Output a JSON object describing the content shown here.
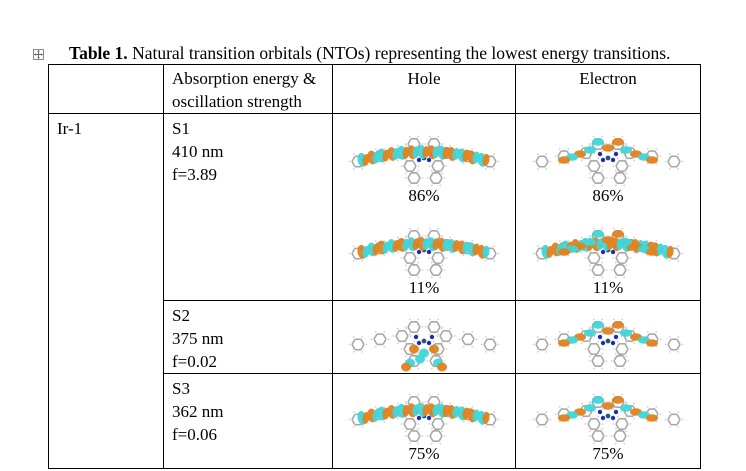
{
  "caption": {
    "label": "Table 1.",
    "text": " Natural transition orbitals (NTOs) representing the lowest energy transitions."
  },
  "table": {
    "headers": [
      "",
      "Absorption energy &",
      "oscillation strength",
      "Hole",
      "Electron"
    ],
    "molecule": "Ir-1",
    "rows": [
      {
        "state": "S1",
        "wavelength": "410 nm",
        "osc": "f=3.89",
        "hole": [
          {
            "orbital": "delocalized-backbone-orbital",
            "weight": "86%"
          },
          {
            "orbital": "delocalized-backbone-orbital",
            "weight": "11%"
          }
        ],
        "electron": [
          {
            "orbital": "central-core-orbital",
            "weight": "86%"
          },
          {
            "orbital": "delocalized-backbone-orbital",
            "weight": "11%"
          }
        ]
      },
      {
        "state": "S2",
        "wavelength": "375 nm",
        "osc": "f=0.02",
        "hole": [
          {
            "orbital": "ancillary-ligand-orbital",
            "weight": ""
          }
        ],
        "electron": [
          {
            "orbital": "central-core-orbital",
            "weight": ""
          }
        ]
      },
      {
        "state": "S3",
        "wavelength": "362 nm",
        "osc": "f=0.06",
        "hole": [
          {
            "orbital": "delocalized-backbone-orbital",
            "weight": "75%"
          }
        ],
        "electron": [
          {
            "orbital": "central-core-orbital",
            "weight": "75%"
          }
        ]
      }
    ]
  },
  "colors": {
    "lobe_positive": "#e0821f",
    "lobe_negative": "#3fd6d8",
    "atom_c": "#a8a8a8",
    "atom_n": "#1c2bb8",
    "atom_ir": "#1f5b7a"
  }
}
